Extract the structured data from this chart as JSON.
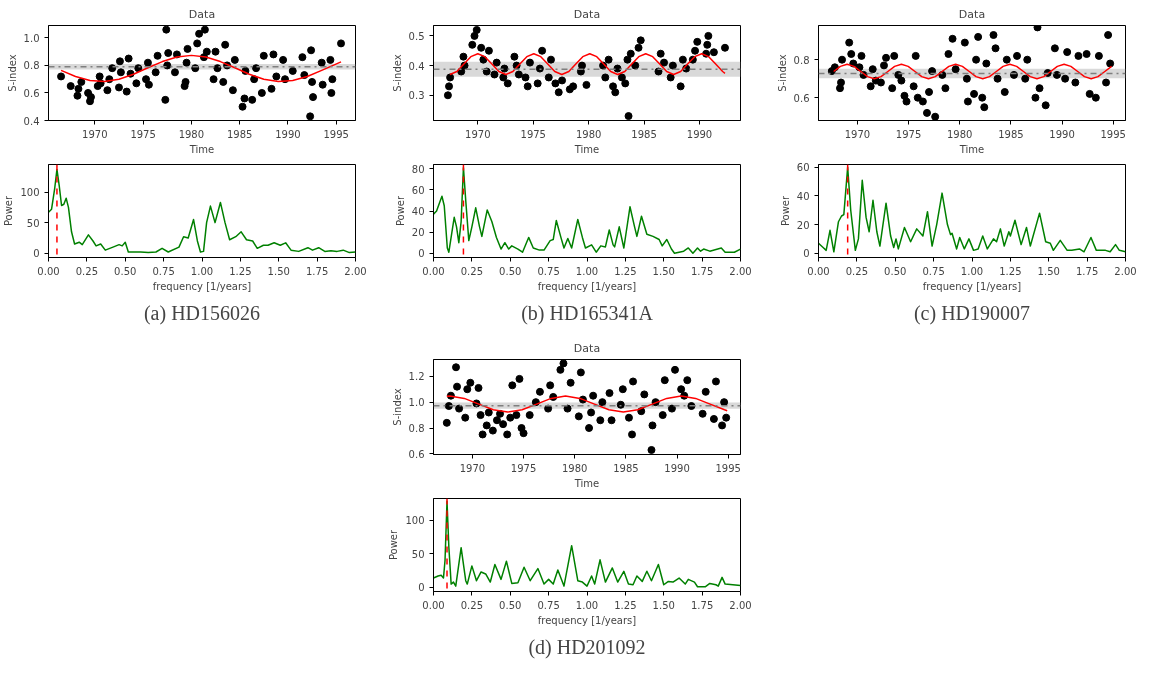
{
  "chart_data": [
    {
      "type": "scatter",
      "title": "Data",
      "xlabel": "Time",
      "ylabel": "S-index",
      "xlim": [
        1965.2,
        1997
      ],
      "ylim": [
        0.4,
        1.09
      ],
      "xticks": [
        1970,
        1975,
        1980,
        1985,
        1990,
        1995
      ],
      "yticks": [
        0.4,
        0.6,
        0.8,
        {
          "value": 1,
          "label": "1.0"
        }
      ],
      "series": [
        {
          "type": "scatter",
          "marker": "circle",
          "color": "#000000",
          "x": [
            1966.5,
            1967.5,
            1968.2,
            1968.3,
            1968.6,
            1969.3,
            1969.5,
            1969.6,
            1970.3,
            1970.5,
            1970.6,
            1971.3,
            1971.5,
            1971.8,
            1972.5,
            1972.6,
            1972.7,
            1973.3,
            1973.5,
            1973.7,
            1974.3,
            1974.5,
            1975.3,
            1975.5,
            1975.6,
            1976.3,
            1976.5,
            1977.3,
            1977.4,
            1977.5,
            1977.6,
            1978.3,
            1978.5,
            1979.3,
            1979.4,
            1979.5,
            1979.6,
            1980.4,
            1980.6,
            1980.8,
            1981.3,
            1981.4,
            1981.6,
            1982.3,
            1982.5,
            1982.7,
            1983.3,
            1983.5,
            1983.7,
            1984.3,
            1984.5,
            1985.3,
            1985.5,
            1985.6,
            1986.3,
            1986.5,
            1986.7,
            1987.3,
            1987.5,
            1988.3,
            1988.5,
            1988.8,
            1989.5,
            1989.7,
            1990.5,
            1991.5,
            1991.7,
            1992.3,
            1992.4,
            1992.5,
            1992.6,
            1993.5,
            1993.6,
            1994.4,
            1994.5,
            1994.6,
            1995.5
          ],
          "values": [
            0.72,
            0.65,
            0.58,
            0.63,
            0.68,
            0.6,
            0.54,
            0.57,
            0.65,
            0.72,
            0.67,
            0.62,
            0.7,
            0.78,
            0.64,
            0.83,
            0.75,
            0.61,
            0.85,
            0.74,
            0.67,
            0.78,
            0.7,
            0.82,
            0.66,
            0.75,
            0.87,
            0.55,
            1.06,
            0.8,
            0.89,
            0.75,
            0.88,
            0.65,
            0.68,
            0.82,
            0.92,
            0.78,
            0.96,
            1.03,
            0.86,
            1.06,
            0.9,
            0.7,
            0.9,
            0.78,
            0.68,
            0.95,
            0.8,
            0.62,
            0.84,
            0.5,
            0.56,
            0.76,
            0.55,
            0.7,
            0.78,
            0.6,
            0.87,
            0.63,
            0.88,
            0.72,
            0.84,
            0.7,
            0.76,
            0.86,
            0.73,
            0.43,
            0.91,
            0.68,
            0.57,
            0.82,
            0.66,
            0.84,
            0.6,
            0.7,
            0.96
          ]
        },
        {
          "type": "line",
          "color": "#ff0000",
          "x": [
            1966.5,
            1968,
            1969.5,
            1971,
            1972.5,
            1974,
            1975.5,
            1977,
            1978.5,
            1980,
            1981.5,
            1983,
            1984.5,
            1986,
            1987.5,
            1989,
            1990.5,
            1992,
            1993.5,
            1995.5
          ],
          "values": [
            0.764,
            0.72,
            0.691,
            0.683,
            0.7,
            0.736,
            0.783,
            0.828,
            0.861,
            0.873,
            0.861,
            0.828,
            0.783,
            0.736,
            0.7,
            0.683,
            0.691,
            0.72,
            0.764,
            0.826
          ]
        }
      ],
      "ref_lines": [
        {
          "axis": "y",
          "value": 0.79,
          "color": "#7f7f7f",
          "line_style": "dashdot"
        }
      ],
      "bands": [
        {
          "axis": "y",
          "from": 0.77,
          "to": 0.81,
          "color": "#bfbfbf"
        }
      ]
    },
    {
      "type": "line",
      "xlabel": "frequency [1/years]",
      "ylabel": "Power",
      "xlim": [
        0,
        2
      ],
      "ylim": [
        -7,
        145
      ],
      "xticks": [
        {
          "value": 0,
          "label": "0.00"
        },
        {
          "value": 0.25,
          "label": "0.25"
        },
        {
          "value": 0.5,
          "label": "0.50"
        },
        {
          "value": 0.75,
          "label": "0.75"
        },
        {
          "value": 1,
          "label": "1.00"
        },
        {
          "value": 1.25,
          "label": "1.25"
        },
        {
          "value": 1.5,
          "label": "1.50"
        },
        {
          "value": 1.75,
          "label": "1.75"
        },
        {
          "value": 2,
          "label": "2.00"
        }
      ],
      "yticks": [
        0,
        50,
        100
      ],
      "series": [
        {
          "color": "#008000",
          "x": [
            0,
            0.02,
            0.04,
            0.055,
            0.07,
            0.085,
            0.1,
            0.115,
            0.13,
            0.15,
            0.17,
            0.2,
            0.22,
            0.26,
            0.29,
            0.31,
            0.34,
            0.37,
            0.42,
            0.46,
            0.48,
            0.5,
            0.52,
            0.6,
            0.65,
            0.7,
            0.74,
            0.78,
            0.85,
            0.88,
            0.91,
            0.945,
            0.97,
            0.99,
            1.01,
            1.03,
            1.055,
            1.085,
            1.12,
            1.15,
            1.18,
            1.22,
            1.255,
            1.29,
            1.33,
            1.36,
            1.4,
            1.43,
            1.47,
            1.51,
            1.545,
            1.58,
            1.63,
            1.69,
            1.72,
            1.76,
            1.8,
            1.84,
            1.88,
            1.92,
            1.96,
            2.0
          ],
          "values": [
            67,
            72,
            105,
            137,
            110,
            78,
            80,
            90,
            75,
            35,
            15,
            18,
            14,
            30,
            20,
            12,
            15,
            5,
            10,
            14,
            12,
            18,
            2,
            2,
            1,
            2,
            8,
            2,
            10,
            27,
            25,
            55,
            20,
            2,
            3,
            50,
            77,
            50,
            83,
            50,
            22,
            27,
            35,
            22,
            20,
            8,
            13,
            13,
            17,
            13,
            17,
            5,
            3,
            9,
            5,
            9,
            3,
            4,
            3,
            5,
            1,
            2
          ]
        }
      ],
      "ref_lines": [
        {
          "axis": "x",
          "value": 0.055,
          "color": "#ff0000",
          "line_style": "dashed"
        }
      ],
      "annotations": [
        "(a) HD156026"
      ]
    },
    {
      "type": "scatter",
      "title": "Data",
      "xlabel": "Time",
      "ylabel": "S-index",
      "xlim": [
        1966,
        1993.7
      ],
      "ylim": [
        0.215,
        0.535
      ],
      "xticks": [
        1970,
        1975,
        1980,
        1985,
        1990
      ],
      "yticks": [
        0.3,
        0.4,
        0.5
      ],
      "series": [
        {
          "type": "scatter",
          "marker": "circle",
          "color": "#000000",
          "x": [
            1967.3,
            1967.4,
            1967.5,
            1968.5,
            1968.7,
            1968.8,
            1969.5,
            1969.7,
            1969.9,
            1970.3,
            1970.5,
            1970.8,
            1971.0,
            1971.5,
            1971.7,
            1972.3,
            1972.4,
            1972.7,
            1973.3,
            1973.5,
            1973.7,
            1974.3,
            1974.5,
            1974.7,
            1975.4,
            1975.6,
            1975.8,
            1976.4,
            1976.6,
            1977.0,
            1977.3,
            1977.6,
            1978.3,
            1978.6,
            1979.3,
            1979.4,
            1979.8,
            1981.3,
            1981.5,
            1981.8,
            1982.2,
            1982.4,
            1982.6,
            1983.0,
            1983.3,
            1983.5,
            1983.6,
            1983.8,
            1984.2,
            1984.5,
            1984.7,
            1986.3,
            1986.5,
            1986.8,
            1987.4,
            1987.6,
            1988.3,
            1988.5,
            1988.8,
            1989.4,
            1989.6,
            1989.8,
            1990.6,
            1990.7,
            1990.8,
            1991.3,
            1992.3
          ],
          "values": [
            0.3,
            0.33,
            0.36,
            0.38,
            0.43,
            0.4,
            0.47,
            0.5,
            0.52,
            0.46,
            0.42,
            0.38,
            0.45,
            0.37,
            0.41,
            0.36,
            0.39,
            0.34,
            0.43,
            0.4,
            0.37,
            0.36,
            0.33,
            0.41,
            0.34,
            0.39,
            0.45,
            0.36,
            0.42,
            0.34,
            0.31,
            0.35,
            0.32,
            0.33,
            0.38,
            0.4,
            0.335,
            0.4,
            0.36,
            0.42,
            0.33,
            0.31,
            0.39,
            0.36,
            0.34,
            0.42,
            0.23,
            0.44,
            0.4,
            0.46,
            0.485,
            0.38,
            0.44,
            0.41,
            0.36,
            0.4,
            0.33,
            0.42,
            0.39,
            0.42,
            0.45,
            0.48,
            0.44,
            0.47,
            0.5,
            0.445,
            0.46
          ]
        },
        {
          "type": "line",
          "color": "#ff0000",
          "x": [
            1967.48,
            1968.11,
            1968.74,
            1969.37,
            1970.0,
            1970.63,
            1971.27,
            1971.9,
            1972.53,
            1973.16,
            1973.79,
            1974.42,
            1975.05,
            1975.68,
            1976.31,
            1976.94,
            1977.58,
            1978.21,
            1978.84,
            1979.47,
            1980.1,
            1980.73,
            1981.36,
            1981.99,
            1982.62,
            1983.26,
            1983.89,
            1984.52,
            1985.15,
            1985.78,
            1986.41,
            1987.04,
            1987.67,
            1988.3,
            1988.93,
            1989.57,
            1990.2,
            1990.83,
            1991.46,
            1992.09,
            1992.3
          ],
          "values": [
            0.37,
            0.38,
            0.405,
            0.43,
            0.44,
            0.43,
            0.405,
            0.38,
            0.37,
            0.38,
            0.405,
            0.43,
            0.44,
            0.43,
            0.405,
            0.38,
            0.37,
            0.38,
            0.405,
            0.43,
            0.44,
            0.43,
            0.405,
            0.38,
            0.37,
            0.38,
            0.405,
            0.43,
            0.44,
            0.43,
            0.405,
            0.38,
            0.37,
            0.38,
            0.405,
            0.43,
            0.44,
            0.43,
            0.405,
            0.38,
            0.374
          ]
        }
      ],
      "ref_lines": [
        {
          "axis": "y",
          "value": 0.388,
          "color": "#7f7f7f",
          "line_style": "dashdot"
        }
      ],
      "bands": [
        {
          "axis": "y",
          "from": 0.362,
          "to": 0.413,
          "color": "#bfbfbf"
        }
      ]
    },
    {
      "type": "line",
      "xlabel": "frequency [1/years]",
      "ylabel": "Power",
      "xlim": [
        0,
        2
      ],
      "ylim": [
        -4,
        84
      ],
      "xticks": [
        {
          "value": 0,
          "label": "0.00"
        },
        {
          "value": 0.25,
          "label": "0.25"
        },
        {
          "value": 0.5,
          "label": "0.50"
        },
        {
          "value": 0.75,
          "label": "0.75"
        },
        {
          "value": 1,
          "label": "1.00"
        },
        {
          "value": 1.25,
          "label": "1.25"
        },
        {
          "value": 1.5,
          "label": "1.50"
        },
        {
          "value": 1.75,
          "label": "1.75"
        },
        {
          "value": 2,
          "label": "2.00"
        }
      ],
      "yticks": [
        0,
        20,
        40,
        60,
        80
      ],
      "series": [
        {
          "color": "#008000",
          "x": [
            0,
            0.02,
            0.04,
            0.055,
            0.07,
            0.09,
            0.1,
            0.12,
            0.135,
            0.15,
            0.165,
            0.18,
            0.195,
            0.21,
            0.23,
            0.25,
            0.275,
            0.3,
            0.315,
            0.35,
            0.38,
            0.41,
            0.44,
            0.465,
            0.49,
            0.51,
            0.55,
            0.58,
            0.62,
            0.65,
            0.69,
            0.72,
            0.76,
            0.78,
            0.8,
            0.83,
            0.85,
            0.875,
            0.9,
            0.94,
            0.97,
            0.99,
            1.03,
            1.06,
            1.09,
            1.12,
            1.145,
            1.17,
            1.18,
            1.21,
            1.24,
            1.28,
            1.31,
            1.325,
            1.355,
            1.39,
            1.43,
            1.47,
            1.49,
            1.52,
            1.55,
            1.57,
            1.63,
            1.66,
            1.69,
            1.72,
            1.74,
            1.76,
            1.8,
            1.875,
            1.9,
            1.96,
            2.0
          ],
          "values": [
            37,
            40,
            48,
            54,
            45,
            5,
            1,
            20,
            34,
            25,
            10,
            30,
            81,
            50,
            12,
            25,
            43,
            25,
            16,
            41,
            30,
            15,
            4,
            10,
            4,
            7,
            4,
            1,
            15,
            5,
            3,
            3,
            12,
            13,
            31,
            15,
            5,
            14,
            5,
            32,
            15,
            5,
            8,
            1,
            7,
            6,
            22,
            8,
            6,
            25,
            5,
            44,
            25,
            16,
            35,
            18,
            16,
            13,
            7,
            13,
            4,
            0,
            2,
            5,
            0,
            5,
            2,
            4,
            2,
            5,
            1,
            1,
            4
          ]
        }
      ],
      "ref_lines": [
        {
          "axis": "x",
          "value": 0.195,
          "color": "#ff0000",
          "line_style": "dashed"
        }
      ],
      "annotations": [
        "(b) HD165341A"
      ]
    },
    {
      "type": "scatter",
      "title": "Data",
      "xlabel": "Time",
      "ylabel": "S-index",
      "xlim": [
        1966.2,
        1996.2
      ],
      "ylim": [
        0.48,
        0.98
      ],
      "xticks": [
        1970,
        1975,
        1980,
        1985,
        1990,
        1995
      ],
      "yticks": [
        0.6,
        0.8
      ],
      "series": [
        {
          "type": "scatter",
          "marker": "circle",
          "color": "#000000",
          "x": [
            1967.5,
            1967.8,
            1968.3,
            1968.4,
            1968.5,
            1969.2,
            1969.4,
            1969.6,
            1970.2,
            1970.4,
            1970.6,
            1971.3,
            1971.5,
            1971.8,
            1972.3,
            1972.6,
            1972.8,
            1973.4,
            1973.6,
            1974.0,
            1974.3,
            1974.6,
            1974.8,
            1975.5,
            1975.7,
            1975.9,
            1976.4,
            1976.8,
            1977.0,
            1977.3,
            1977.6,
            1978.3,
            1978.6,
            1978.9,
            1979.3,
            1979.6,
            1980.5,
            1980.7,
            1980.8,
            1981.4,
            1981.6,
            1981.8,
            1982.2,
            1982.4,
            1982.6,
            1983.3,
            1983.5,
            1983.7,
            1984.4,
            1984.6,
            1985.3,
            1985.6,
            1986.4,
            1986.6,
            1987.4,
            1987.6,
            1987.8,
            1988.4,
            1988.6,
            1989.3,
            1989.5,
            1990.3,
            1990.5,
            1991.3,
            1991.6,
            1992.4,
            1992.7,
            1993.3,
            1993.6,
            1994.3,
            1994.5,
            1994.7
          ],
          "values": [
            0.74,
            0.76,
            0.65,
            0.68,
            0.8,
            0.89,
            0.83,
            0.78,
            0.76,
            0.82,
            0.72,
            0.66,
            0.75,
            0.69,
            0.68,
            0.77,
            0.81,
            0.65,
            0.82,
            0.72,
            0.69,
            0.61,
            0.58,
            0.66,
            0.82,
            0.6,
            0.58,
            0.52,
            0.63,
            0.74,
            0.5,
            0.72,
            0.65,
            0.83,
            0.91,
            0.75,
            0.89,
            0.7,
            0.58,
            0.62,
            0.8,
            0.92,
            0.6,
            0.55,
            0.78,
            0.93,
            0.86,
            0.7,
            0.63,
            0.8,
            0.72,
            0.82,
            0.7,
            0.8,
            0.6,
            0.97,
            0.65,
            0.56,
            0.73,
            0.86,
            0.72,
            0.7,
            0.84,
            0.68,
            0.82,
            0.83,
            0.62,
            0.6,
            0.82,
            0.68,
            0.93,
            0.78
          ]
        },
        {
          "type": "line",
          "color": "#ff0000",
          "x": [
            1967.68,
            1968.34,
            1969.0,
            1969.66,
            1970.33,
            1970.99,
            1971.65,
            1972.31,
            1972.98,
            1973.64,
            1974.3,
            1974.96,
            1975.63,
            1976.29,
            1976.95,
            1977.61,
            1978.28,
            1978.94,
            1979.6,
            1980.26,
            1980.93,
            1981.59,
            1982.25,
            1982.91,
            1983.58,
            1984.24,
            1984.9,
            1985.56,
            1986.23,
            1986.89,
            1987.55,
            1988.21,
            1988.88,
            1989.54,
            1990.2,
            1990.86,
            1991.53,
            1992.19,
            1992.85,
            1993.51,
            1994.18,
            1994.84
          ],
          "values": [
            0.738,
            0.765,
            0.776,
            0.765,
            0.738,
            0.711,
            0.7,
            0.711,
            0.738,
            0.765,
            0.776,
            0.765,
            0.738,
            0.711,
            0.7,
            0.711,
            0.738,
            0.765,
            0.776,
            0.765,
            0.738,
            0.711,
            0.7,
            0.711,
            0.738,
            0.765,
            0.776,
            0.765,
            0.738,
            0.711,
            0.7,
            0.711,
            0.738,
            0.765,
            0.776,
            0.765,
            0.738,
            0.711,
            0.7,
            0.711,
            0.738,
            0.765
          ]
        }
      ],
      "ref_lines": [
        {
          "axis": "y",
          "value": 0.728,
          "color": "#7f7f7f",
          "line_style": "dashdot"
        }
      ],
      "bands": [
        {
          "axis": "y",
          "from": 0.703,
          "to": 0.753,
          "color": "#bfbfbf"
        }
      ]
    },
    {
      "type": "line",
      "xlabel": "frequency [1/years]",
      "ylabel": "Power",
      "xlim": [
        0,
        2
      ],
      "ylim": [
        -3,
        62
      ],
      "xticks": [
        {
          "value": 0,
          "label": "0.00"
        },
        {
          "value": 0.25,
          "label": "0.25"
        },
        {
          "value": 0.5,
          "label": "0.50"
        },
        {
          "value": 0.75,
          "label": "0.75"
        },
        {
          "value": 1,
          "label": "1.00"
        },
        {
          "value": 1.25,
          "label": "1.25"
        },
        {
          "value": 1.5,
          "label": "1.50"
        },
        {
          "value": 1.75,
          "label": "1.75"
        },
        {
          "value": 2,
          "label": "2.00"
        }
      ],
      "yticks": [
        0,
        20,
        40,
        60
      ],
      "series": [
        {
          "color": "#008000",
          "x": [
            0,
            0.03,
            0.05,
            0.075,
            0.1,
            0.13,
            0.15,
            0.165,
            0.19,
            0.21,
            0.24,
            0.26,
            0.285,
            0.31,
            0.33,
            0.355,
            0.38,
            0.4,
            0.44,
            0.47,
            0.49,
            0.505,
            0.52,
            0.56,
            0.6,
            0.64,
            0.68,
            0.71,
            0.74,
            0.77,
            0.805,
            0.84,
            0.86,
            0.87,
            0.9,
            0.92,
            0.95,
            0.98,
            1.01,
            1.04,
            1.07,
            1.1,
            1.14,
            1.16,
            1.185,
            1.21,
            1.24,
            1.25,
            1.28,
            1.32,
            1.355,
            1.38,
            1.44,
            1.48,
            1.51,
            1.53,
            1.575,
            1.62,
            1.65,
            1.7,
            1.73,
            1.775,
            1.81,
            1.87,
            1.9,
            1.935,
            1.96,
            2.0
          ],
          "values": [
            7,
            4,
            2,
            16,
            1,
            22,
            26,
            27,
            60,
            30,
            2,
            10,
            51,
            25,
            15,
            37,
            15,
            5,
            35,
            12,
            4,
            10,
            3,
            18,
            8,
            17,
            12,
            29,
            5,
            20,
            42,
            20,
            13,
            14,
            3,
            11,
            3,
            10,
            2,
            3,
            12,
            3,
            10,
            8,
            17,
            5,
            15,
            12,
            23,
            6,
            18,
            5,
            28,
            8,
            7,
            2,
            9,
            2,
            2,
            3,
            1,
            11,
            2,
            2,
            1,
            6,
            2,
            1
          ]
        }
      ],
      "ref_lines": [
        {
          "axis": "x",
          "value": 0.19,
          "color": "#ff0000",
          "line_style": "dashed"
        }
      ],
      "annotations": [
        "(c) HD190007"
      ]
    },
    {
      "type": "scatter",
      "title": "Data",
      "xlabel": "Time",
      "ylabel": "S-index",
      "xlim": [
        1966.2,
        1996.2
      ],
      "ylim": [
        0.595,
        1.33
      ],
      "xticks": [
        1970,
        1975,
        1980,
        1985,
        1990,
        1995
      ],
      "yticks": [
        0.6,
        0.8,
        {
          "value": 1,
          "label": "1.0"
        },
        1.2
      ],
      "series": [
        {
          "type": "scatter",
          "marker": "circle",
          "color": "#000000",
          "x": [
            1967.5,
            1967.7,
            1967.9,
            1968.4,
            1968.5,
            1968.7,
            1969.3,
            1969.5,
            1969.8,
            1970.4,
            1970.6,
            1970.8,
            1971.0,
            1971.4,
            1971.6,
            1972.0,
            1972.4,
            1972.7,
            1973.0,
            1973.4,
            1973.7,
            1973.9,
            1974.3,
            1974.6,
            1974.8,
            1975.0,
            1975.6,
            1976.2,
            1976.6,
            1977.4,
            1977.6,
            1977.9,
            1978.6,
            1978.9,
            1979.3,
            1979.6,
            1980.4,
            1980.6,
            1980.8,
            1981.4,
            1981.6,
            1981.8,
            1982.5,
            1982.7,
            1983.4,
            1983.6,
            1984.5,
            1984.7,
            1985.3,
            1985.6,
            1985.7,
            1986.5,
            1986.8,
            1987.5,
            1987.6,
            1987.9,
            1988.6,
            1988.8,
            1989.5,
            1989.8,
            1990.4,
            1990.7,
            1991.0,
            1991.4,
            1992.5,
            1992.8,
            1993.6,
            1993.8,
            1994.4,
            1994.6,
            1994.8
          ],
          "values": [
            0.84,
            0.97,
            1.05,
            1.27,
            1.12,
            0.95,
            0.88,
            1.1,
            1.15,
            0.99,
            1.11,
            0.9,
            0.75,
            0.82,
            0.92,
            0.78,
            0.86,
            0.91,
            0.83,
            0.75,
            0.88,
            1.13,
            0.9,
            1.18,
            0.8,
            0.76,
            0.9,
            1.0,
            1.08,
            0.95,
            1.13,
            1.04,
            1.25,
            1.3,
            0.95,
            1.15,
            0.89,
            1.23,
            1.02,
            0.8,
            0.92,
            1.05,
            0.86,
            1.0,
            1.07,
            0.86,
            0.98,
            1.1,
            0.88,
            0.75,
            1.16,
            0.93,
            1.06,
            0.63,
            0.82,
            1.0,
            0.9,
            1.17,
            0.95,
            1.25,
            1.1,
            1.05,
            1.17,
            0.97,
            0.91,
            1.08,
            0.87,
            1.16,
            0.82,
            1.0,
            0.88
          ]
        },
        {
          "type": "line",
          "color": "#ff0000",
          "x": [
            1967.5,
            1967.8,
            1969.21,
            1970.63,
            1972.04,
            1973.45,
            1974.86,
            1976.28,
            1977.69,
            1979.1,
            1980.51,
            1981.93,
            1983.34,
            1984.75,
            1986.16,
            1987.58,
            1988.99,
            1990.4,
            1991.81,
            1993.23,
            1994.64,
            1994.9
          ],
          "values": [
            1.046,
            1.047,
            1.029,
            0.985,
            0.941,
            0.923,
            0.941,
            0.985,
            1.029,
            1.047,
            1.029,
            0.985,
            0.941,
            0.923,
            0.941,
            0.985,
            1.029,
            1.047,
            1.029,
            0.985,
            0.941,
            0.934
          ]
        }
      ],
      "ref_lines": [
        {
          "axis": "y",
          "value": 0.972,
          "color": "#7f7f7f",
          "line_style": "dashdot"
        }
      ],
      "bands": [
        {
          "axis": "y",
          "from": 0.948,
          "to": 0.997,
          "color": "#bfbfbf"
        }
      ]
    },
    {
      "type": "line",
      "xlabel": "frequency [1/years]",
      "ylabel": "Power",
      "xlim": [
        0,
        2
      ],
      "ylim": [
        -6,
        132
      ],
      "xticks": [
        {
          "value": 0,
          "label": "0.00"
        },
        {
          "value": 0.25,
          "label": "0.25"
        },
        {
          "value": 0.5,
          "label": "0.50"
        },
        {
          "value": 0.75,
          "label": "0.75"
        },
        {
          "value": 1,
          "label": "1.00"
        },
        {
          "value": 1.25,
          "label": "1.25"
        },
        {
          "value": 1.5,
          "label": "1.50"
        },
        {
          "value": 1.75,
          "label": "1.75"
        },
        {
          "value": 2,
          "label": "2.00"
        }
      ],
      "yticks": [
        0,
        50,
        100
      ],
      "series": [
        {
          "color": "#008000",
          "x": [
            0,
            0.03,
            0.05,
            0.065,
            0.075,
            0.088,
            0.1,
            0.115,
            0.13,
            0.145,
            0.18,
            0.21,
            0.22,
            0.25,
            0.28,
            0.31,
            0.34,
            0.37,
            0.4,
            0.44,
            0.475,
            0.51,
            0.55,
            0.59,
            0.63,
            0.68,
            0.72,
            0.75,
            0.78,
            0.81,
            0.85,
            0.9,
            0.94,
            0.97,
            1.0,
            1.03,
            1.05,
            1.085,
            1.12,
            1.165,
            1.2,
            1.24,
            1.27,
            1.3,
            1.325,
            1.36,
            1.39,
            1.42,
            1.465,
            1.5,
            1.53,
            1.56,
            1.6,
            1.64,
            1.66,
            1.7,
            1.72,
            1.77,
            1.8,
            1.84,
            1.855,
            1.88,
            1.9,
            1.95,
            2.0
          ],
          "values": [
            14,
            17,
            18,
            14,
            40,
            128,
            60,
            5,
            8,
            2,
            59,
            10,
            5,
            32,
            10,
            23,
            20,
            8,
            34,
            12,
            39,
            6,
            7,
            30,
            10,
            28,
            5,
            12,
            5,
            26,
            2,
            62,
            10,
            8,
            2,
            17,
            5,
            41,
            8,
            29,
            8,
            24,
            5,
            4,
            17,
            9,
            24,
            10,
            34,
            4,
            9,
            8,
            14,
            5,
            12,
            8,
            1,
            1,
            6,
            4,
            2,
            15,
            5,
            4,
            3
          ]
        }
      ],
      "ref_lines": [
        {
          "axis": "x",
          "value": 0.088,
          "color": "#ff0000",
          "line_style": "dashed"
        }
      ],
      "annotations": [
        "(d) HD201092"
      ]
    }
  ]
}
